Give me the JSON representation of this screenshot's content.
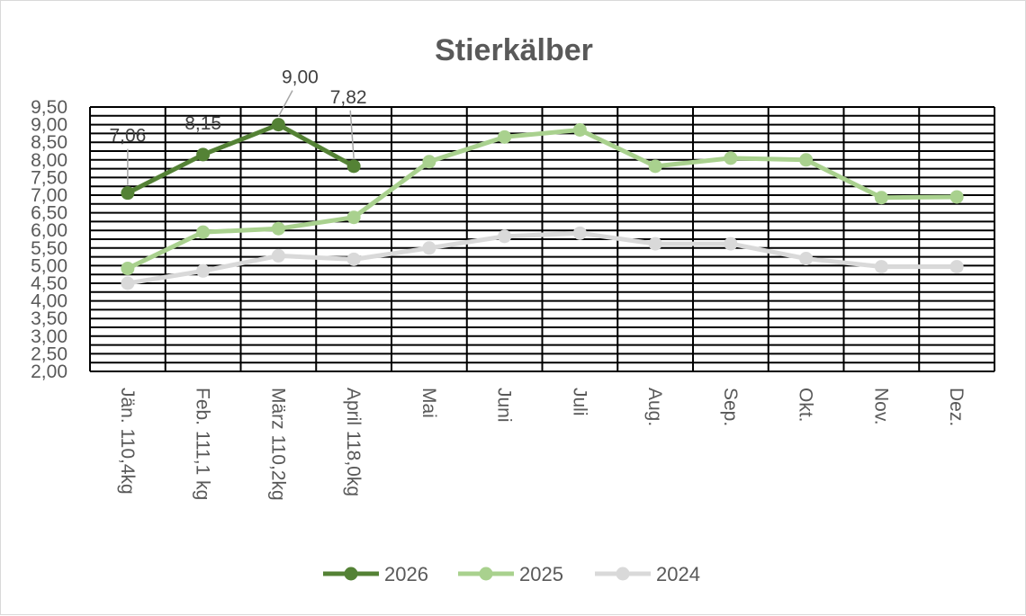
{
  "chart_data": {
    "type": "line",
    "title": "Stierkälber",
    "xlabel": "",
    "ylabel": "",
    "ylim": [
      2.0,
      9.5
    ],
    "ytick_step": 0.25,
    "ytick_labels": [
      "2,00",
      "2,50",
      "3,00",
      "3,50",
      "4,00",
      "4,50",
      "5,00",
      "5,50",
      "6,00",
      "6,50",
      "7,00",
      "7,50",
      "8,00",
      "8,50",
      "9,00",
      "9,50"
    ],
    "grid": true,
    "legend_position": "bottom",
    "categories": [
      "Jän.  110,4kg",
      "Feb.  111,1 kg",
      "März 110,2kg",
      "April  118,0kg",
      "Mai",
      "Juni",
      "Juli",
      "Aug.",
      "Sep.",
      "Okt.",
      "Nov.",
      "Dez."
    ],
    "series": [
      {
        "name": "2026",
        "color": "#548235",
        "values": [
          7.06,
          8.15,
          9.0,
          7.82,
          null,
          null,
          null,
          null,
          null,
          null,
          null,
          null
        ],
        "data_labels": [
          "7,06",
          "8,15",
          "9,00",
          "7,82"
        ]
      },
      {
        "name": "2025",
        "color": "#a9d18e",
        "values": [
          4.92,
          5.95,
          6.05,
          6.37,
          7.95,
          8.65,
          8.85,
          7.82,
          8.05,
          8.0,
          6.93,
          6.95
        ]
      },
      {
        "name": "2024",
        "color": "#d9d9d9",
        "values": [
          4.5,
          4.85,
          5.28,
          5.18,
          5.5,
          5.83,
          5.92,
          5.62,
          5.62,
          5.2,
          4.97,
          4.97
        ]
      }
    ]
  }
}
